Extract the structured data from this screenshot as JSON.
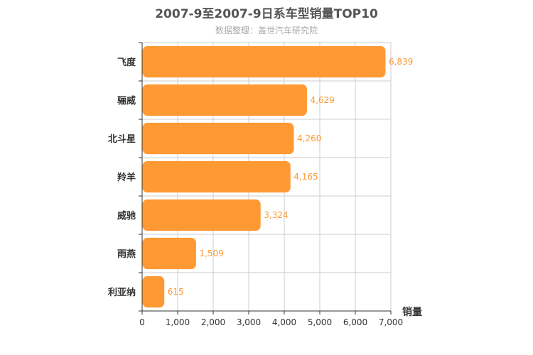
{
  "chart_data": {
    "type": "bar",
    "orientation": "horizontal",
    "title": "2007-9至2007-9日系车型销量TOP10",
    "subtitle": "数据整理：盖世汽车研究院",
    "categories": [
      "飞度",
      "骊威",
      "北斗星",
      "羚羊",
      "威驰",
      "雨燕",
      "利亚纳"
    ],
    "values": [
      6839,
      4629,
      4260,
      4165,
      3324,
      1509,
      615
    ],
    "value_labels": [
      "6,839",
      "4,629",
      "4,260",
      "4,165",
      "3,324",
      "1,509",
      "615"
    ],
    "xlabel": "销量",
    "ylabel": "",
    "xlim": [
      0,
      7000
    ],
    "x_ticks": [
      0,
      1000,
      2000,
      3000,
      4000,
      5000,
      6000,
      7000
    ],
    "x_tick_labels": [
      "0",
      "1,000",
      "2,000",
      "3,000",
      "4,000",
      "5,000",
      "6,000",
      "7,000"
    ],
    "grid": true,
    "legend": "none",
    "colors": {
      "bar": "#ff9933",
      "label": "#ff9933",
      "grid": "#cccccc",
      "axis": "#333333"
    }
  }
}
